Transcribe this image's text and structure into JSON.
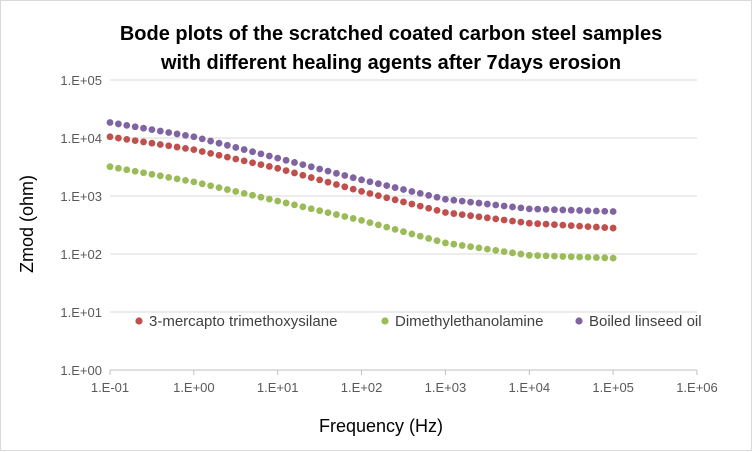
{
  "chart_data": {
    "type": "scatter",
    "title_lines": [
      "Bode plots of the scratched coated carbon steel samples",
      "with different healing agents after 7days erosion"
    ],
    "xlabel": "Frequency (Hz)",
    "ylabel": "Zmod (ohm)",
    "x_scale": "log",
    "y_scale": "log",
    "xlim": [
      0.1,
      1000000
    ],
    "ylim": [
      1,
      100000
    ],
    "x_ticks": [
      0.1,
      1,
      10,
      100,
      1000,
      10000,
      100000,
      1000000
    ],
    "x_tick_labels": [
      "1.E-01",
      "1.E+00",
      "1.E+01",
      "1.E+02",
      "1.E+03",
      "1.E+04",
      "1.E+05",
      "1.E+06"
    ],
    "y_ticks": [
      1,
      10,
      100,
      1000,
      10000,
      100000
    ],
    "y_tick_labels": [
      "1.E+00",
      "1.E+01",
      "1.E+02",
      "1.E+03",
      "1.E+04",
      "1.E+05"
    ],
    "grid": "horizontal",
    "legend_position": "inside-bottom",
    "series": [
      {
        "name": "3-mercapto trimethoxysilane",
        "color": "#c0504d",
        "x": [
          0.1,
          1,
          10,
          100,
          1000,
          10000,
          100000
        ],
        "y": [
          10500,
          6300,
          3000,
          1200,
          520,
          340,
          280
        ]
      },
      {
        "name": "Dimethylethanolamine",
        "color": "#9bbb59",
        "x": [
          0.1,
          1,
          10,
          100,
          1000,
          10000,
          100000
        ],
        "y": [
          3200,
          1750,
          820,
          380,
          155,
          95,
          85
        ]
      },
      {
        "name": "Boiled linseed oil",
        "color": "#8064a2",
        "x": [
          0.1,
          1,
          10,
          100,
          1000,
          10000,
          100000
        ],
        "y": [
          18500,
          10500,
          4500,
          1900,
          880,
          600,
          540
        ]
      }
    ]
  }
}
